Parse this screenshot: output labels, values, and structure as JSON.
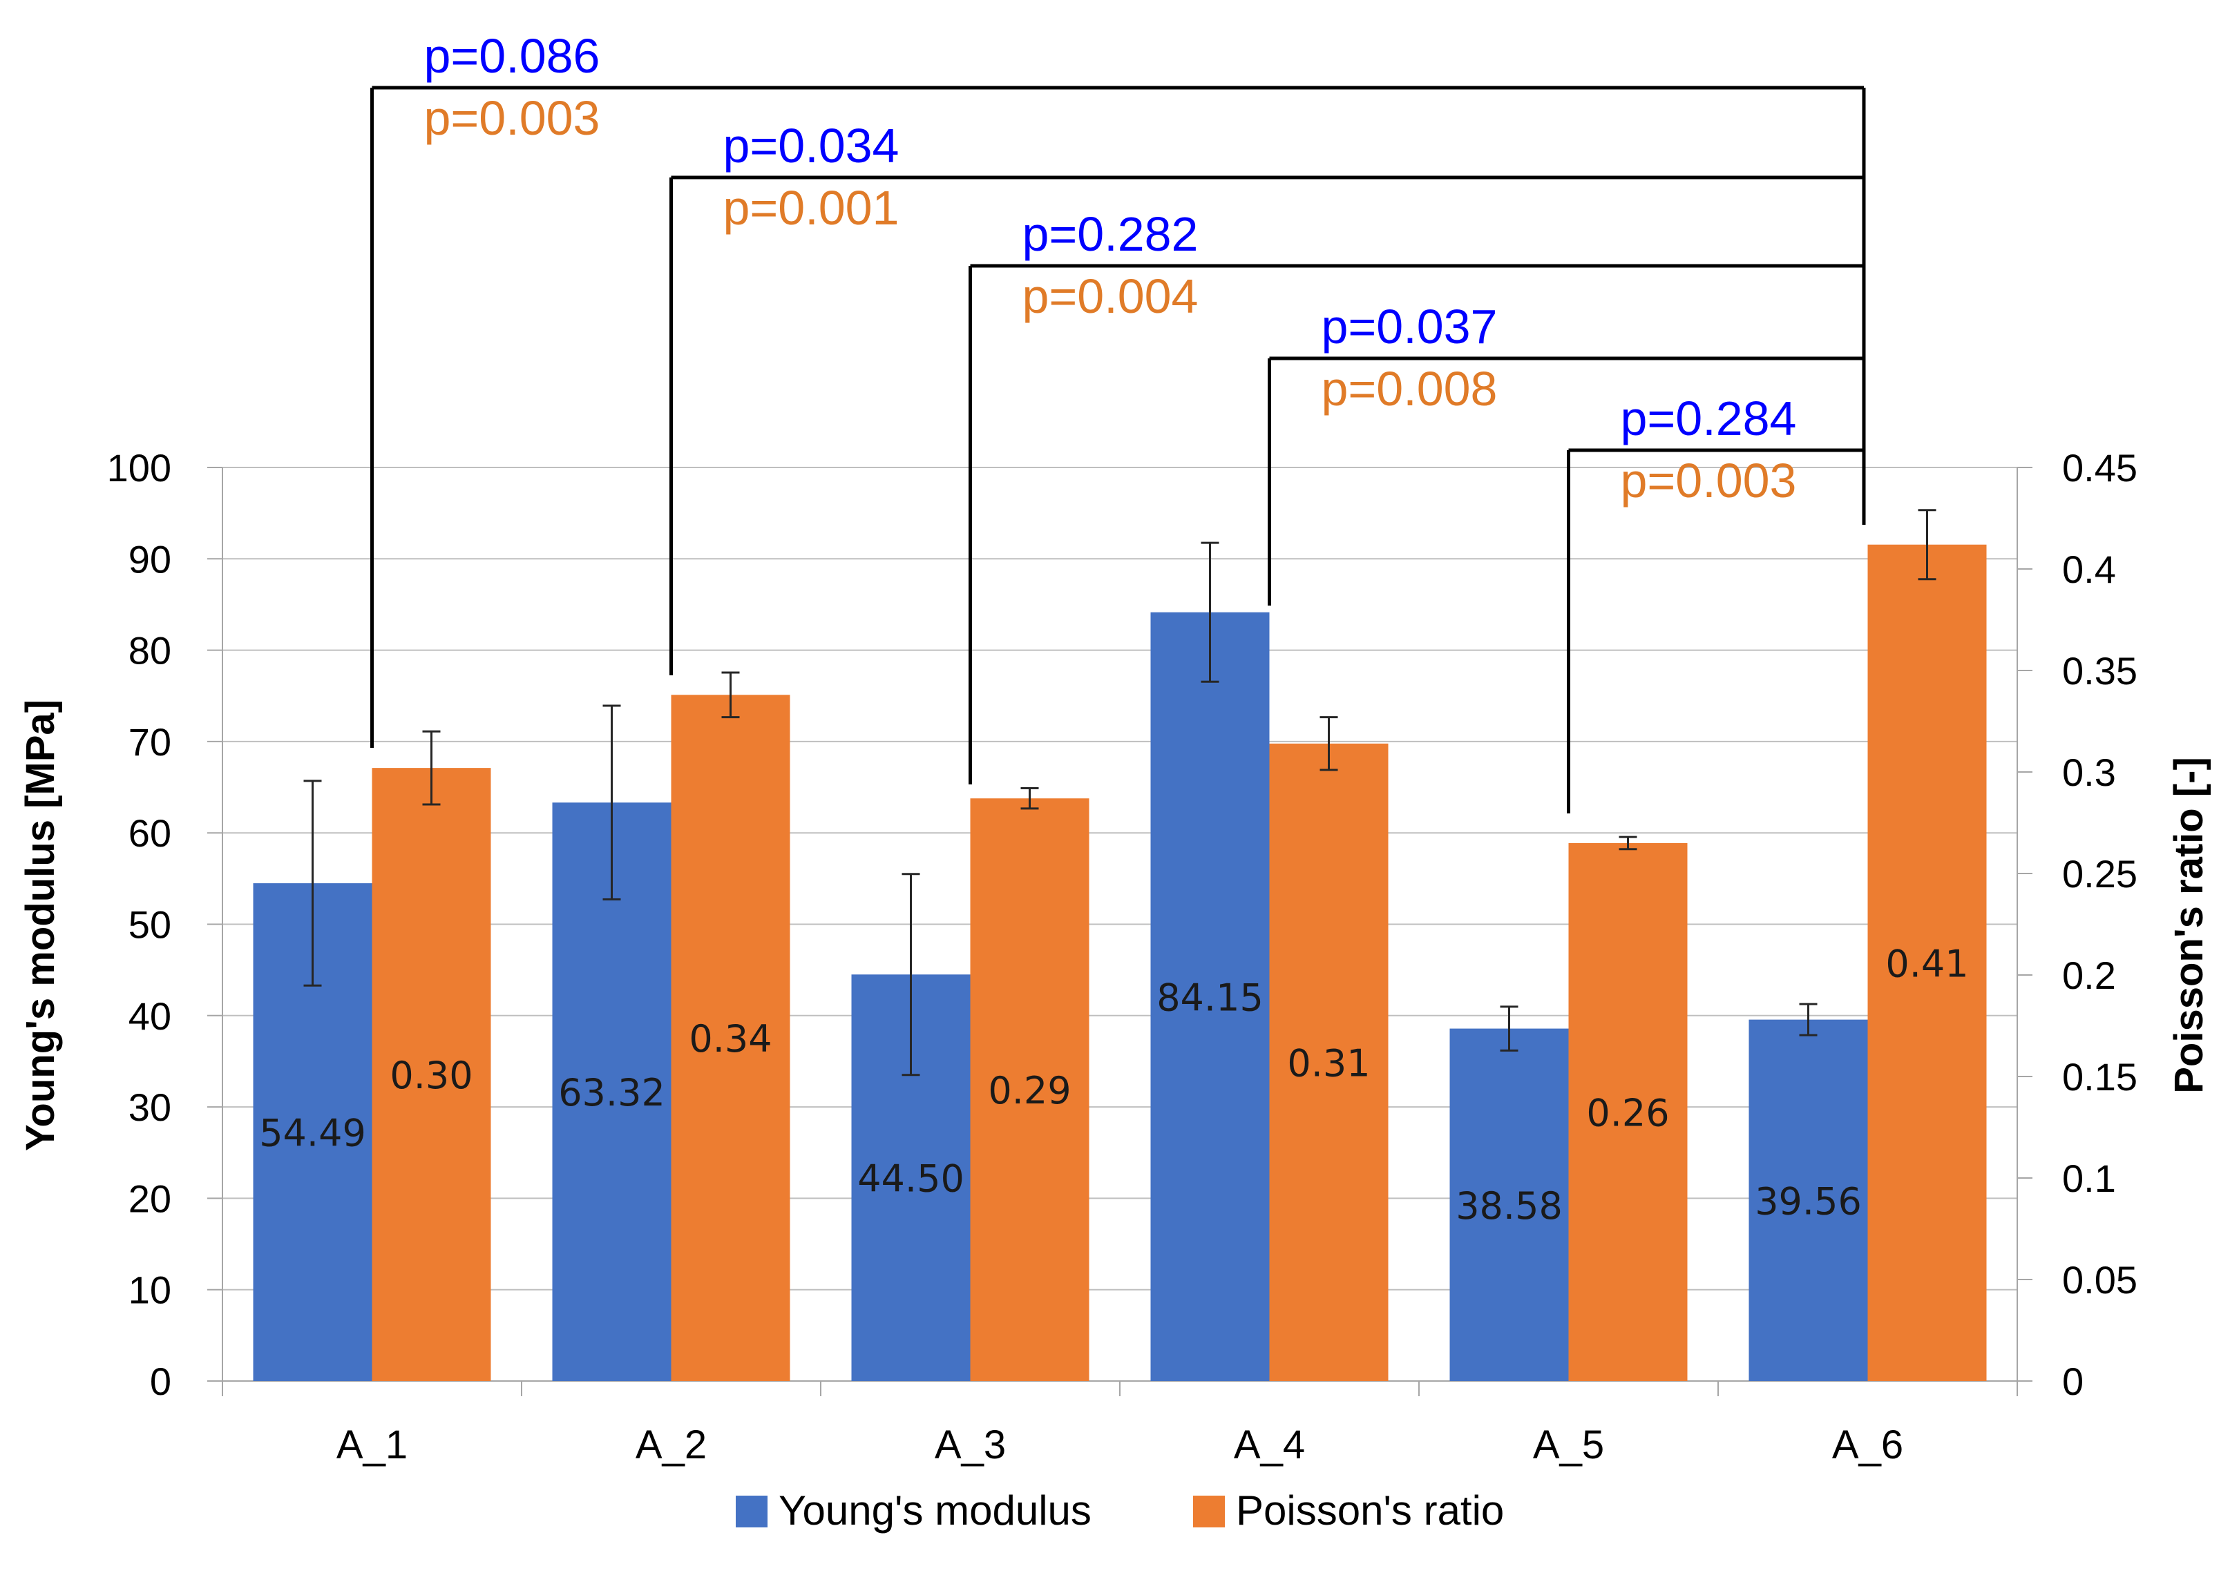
{
  "chart_data": {
    "type": "bar",
    "categories": [
      "A_1",
      "A_2",
      "A_3",
      "A_4",
      "A_5",
      "A_6"
    ],
    "series": [
      {
        "name": "Young's modulus",
        "axis": "left",
        "color": "#4472C4",
        "values": [
          54.49,
          63.32,
          44.5,
          84.15,
          38.58,
          39.56
        ],
        "labels": [
          "54.49",
          "63.32",
          "44.50",
          "84.15",
          "38.58",
          "39.56"
        ],
        "error": [
          11.2,
          10.6,
          11.0,
          7.6,
          2.4,
          1.7
        ]
      },
      {
        "name": "Poisson's ratio",
        "axis": "right",
        "color": "#ED7D31",
        "values": [
          0.302,
          0.338,
          0.287,
          0.314,
          0.265,
          0.412
        ],
        "labels": [
          "0.30",
          "0.34",
          "0.29",
          "0.31",
          "0.26",
          "0.41"
        ],
        "error": [
          0.018,
          0.011,
          0.005,
          0.013,
          0.003,
          0.017
        ]
      }
    ],
    "ylabel": "Young's modulus [MPa]",
    "y2label": "Poisson's ratio [-]",
    "ylim": [
      0,
      100
    ],
    "y2lim": [
      0,
      0.45
    ],
    "yticks": [
      "0",
      "10",
      "20",
      "30",
      "40",
      "50",
      "60",
      "70",
      "80",
      "90",
      "100"
    ],
    "y2ticks": [
      "0",
      "0.05",
      "0.1",
      "0.15",
      "0.2",
      "0.25",
      "0.3",
      "0.35",
      "0.4",
      "0.45"
    ],
    "grid": true,
    "legend": "bottom",
    "significance": [
      {
        "from": "A_1",
        "to": "A_6",
        "p_young": "p=0.086",
        "p_poisson": "p=0.003"
      },
      {
        "from": "A_2",
        "to": "A_6",
        "p_young": "p=0.034",
        "p_poisson": "p=0.001"
      },
      {
        "from": "A_3",
        "to": "A_6",
        "p_young": "p=0.282",
        "p_poisson": "p=0.004"
      },
      {
        "from": "A_4",
        "to": "A_6",
        "p_young": "p=0.037",
        "p_poisson": "p=0.008"
      },
      {
        "from": "A_5",
        "to": "A_6",
        "p_young": "p=0.284",
        "p_poisson": "p=0.003"
      }
    ],
    "p_young_color": "#0000FF",
    "p_poisson_color": "#E07B28"
  }
}
